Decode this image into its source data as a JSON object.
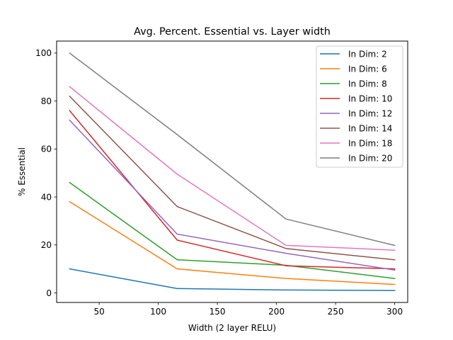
{
  "chart_data": {
    "type": "line",
    "title": "Avg. Percent. Essential vs. Layer width",
    "xlabel": "Width (2 layer RELU)",
    "ylabel": "% Essential",
    "xlim": [
      14,
      311
    ],
    "ylim": [
      -4,
      105
    ],
    "xticks": [
      50,
      100,
      150,
      200,
      250,
      300
    ],
    "yticks": [
      0,
      20,
      40,
      60,
      80,
      100
    ],
    "grid": false,
    "legend_position": "top-right",
    "x": [
      25,
      116,
      208,
      300
    ],
    "series": [
      {
        "name": "In Dim: 2",
        "color": "#1f77b4",
        "values": [
          10,
          1.8,
          1.2,
          1.0
        ]
      },
      {
        "name": "In Dim: 6",
        "color": "#ff7f0e",
        "values": [
          38,
          10,
          6,
          3.5
        ]
      },
      {
        "name": "In Dim: 8",
        "color": "#2ca02c",
        "values": [
          46,
          13.8,
          11.5,
          6
        ]
      },
      {
        "name": "In Dim: 10",
        "color": "#d62728",
        "values": [
          76,
          22,
          11.3,
          10
        ]
      },
      {
        "name": "In Dim: 12",
        "color": "#9467bd",
        "values": [
          72,
          24.5,
          16.5,
          9.5
        ]
      },
      {
        "name": "In Dim: 14",
        "color": "#8c564b",
        "values": [
          82,
          36,
          18.5,
          13.8
        ]
      },
      {
        "name": "In Dim: 18",
        "color": "#e377c2",
        "values": [
          86,
          49.5,
          19.8,
          17.8
        ]
      },
      {
        "name": "In Dim: 20",
        "color": "#7f7f7f",
        "values": [
          100,
          66,
          30.8,
          19.8
        ]
      }
    ]
  }
}
